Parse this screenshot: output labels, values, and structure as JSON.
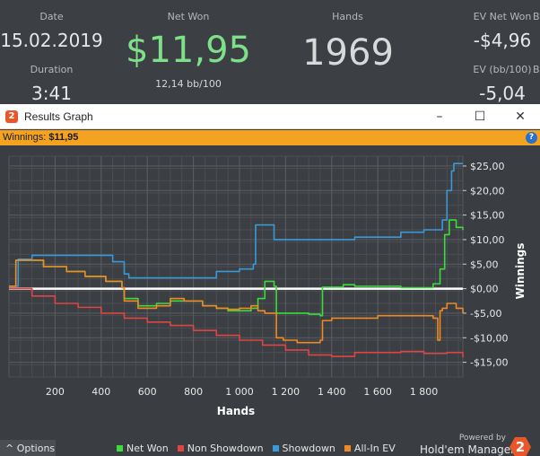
{
  "stats": {
    "date_label": "Date",
    "date_value": "15.02.2019",
    "duration_label": "Duration",
    "duration_value": "3:41",
    "net_won_label": "Net Won",
    "net_won_value": "$11,95",
    "net_won_bb": "12,14 bb/100",
    "hands_label": "Hands",
    "hands_value": "1969",
    "ev_net_won_label": "EV Net Won",
    "ev_net_won_value": "-$4,96",
    "ev_bb_label": "EV (bb/100)",
    "ev_bb_value": "-5,04",
    "cut_label_1": "B",
    "cut_label_2": "B",
    "net_won_color": "#7fe08a"
  },
  "window": {
    "title": "Results Graph",
    "minimize_icon": "minimize-icon",
    "maximize_icon": "maximize-icon",
    "close_icon": "close-icon"
  },
  "infobar": {
    "label": "Winnings:",
    "value": "$11,95",
    "help": "?"
  },
  "bottom": {
    "options_label": "Options",
    "options_icon": "^",
    "powered_by": "Powered by",
    "brand": "Hold'em Manager",
    "brand_logo": "2"
  },
  "chart_data": {
    "type": "line",
    "xlabel": "Hands",
    "ylabel": "Winnings",
    "xlim": [
      0,
      1969
    ],
    "ylim": [
      -18,
      27
    ],
    "x_ticks": [
      200,
      400,
      600,
      800,
      1000,
      1200,
      1400,
      1600,
      1800
    ],
    "x_tick_labels": [
      "200",
      "400",
      "600",
      "800",
      "1 000",
      "1 200",
      "1 400",
      "1 600",
      "1 800"
    ],
    "y_ticks": [
      25,
      20,
      15,
      10,
      5,
      0,
      -5,
      -10,
      -15
    ],
    "y_tick_labels": [
      "$25,00",
      "$20,00",
      "$15,00",
      "$10,00",
      "$5,00",
      "$0,00",
      "-$5,00",
      "-$10,00",
      "-$15,00"
    ],
    "grid": true,
    "legend_position": "bottom",
    "series": [
      {
        "name": "Net Won",
        "color": "#3ddc3d",
        "x": [
          0,
          30,
          60,
          150,
          250,
          330,
          420,
          490,
          500,
          560,
          640,
          700,
          760,
          840,
          900,
          950,
          1000,
          1050,
          1080,
          1110,
          1150,
          1160,
          1190,
          1250,
          1300,
          1350,
          1360,
          1400,
          1450,
          1500,
          1550,
          1600,
          1700,
          1780,
          1840,
          1870,
          1890,
          1910,
          1940,
          1969
        ],
        "y": [
          0.5,
          5.8,
          5.8,
          4.5,
          3.5,
          2.5,
          1.5,
          0.2,
          -2.0,
          -3.5,
          -3.0,
          -2.5,
          -2.5,
          -3.5,
          -4.0,
          -4.5,
          -4.5,
          -4.0,
          -2.0,
          1.5,
          0.5,
          -5.0,
          -5.0,
          -5.0,
          -5.2,
          -5.5,
          0.3,
          0.3,
          0.8,
          0.5,
          0.5,
          0.5,
          0.2,
          0.2,
          1.0,
          4.0,
          11.0,
          14.0,
          12.5,
          11.95
        ]
      },
      {
        "name": "Non Showdown",
        "color": "#e04444",
        "x": [
          0,
          100,
          200,
          300,
          400,
          500,
          600,
          700,
          800,
          900,
          1000,
          1100,
          1200,
          1300,
          1400,
          1500,
          1600,
          1700,
          1800,
          1900,
          1969
        ],
        "y": [
          0,
          -1.5,
          -3.0,
          -3.8,
          -5.0,
          -6.0,
          -6.8,
          -7.5,
          -8.5,
          -9.5,
          -10.5,
          -11.5,
          -12.5,
          -13.5,
          -13.8,
          -13.0,
          -13.0,
          -12.8,
          -13.2,
          -13.0,
          -14.0
        ]
      },
      {
        "name": "Showdown",
        "color": "#3a9ad9",
        "x": [
          0,
          40,
          100,
          200,
          300,
          440,
          450,
          500,
          520,
          700,
          900,
          1000,
          1060,
          1070,
          1100,
          1150,
          1200,
          1400,
          1500,
          1600,
          1700,
          1750,
          1800,
          1850,
          1880,
          1900,
          1920,
          1930,
          1969
        ],
        "y": [
          0.5,
          6.0,
          6.8,
          6.8,
          6.8,
          6.8,
          5.5,
          3.0,
          2.2,
          2.2,
          3.5,
          4.0,
          5.0,
          13.0,
          13.0,
          10.0,
          10.0,
          10.0,
          10.5,
          10.5,
          11.5,
          11.5,
          12.0,
          12.0,
          14.0,
          20.0,
          24.0,
          25.5,
          25.5
        ]
      },
      {
        "name": "All-In EV",
        "color": "#f08a24",
        "x": [
          0,
          30,
          60,
          150,
          250,
          330,
          420,
          490,
          500,
          560,
          640,
          700,
          760,
          840,
          900,
          950,
          1000,
          1050,
          1080,
          1110,
          1160,
          1190,
          1250,
          1300,
          1350,
          1360,
          1400,
          1500,
          1600,
          1700,
          1780,
          1840,
          1860,
          1870,
          1880,
          1900,
          1940,
          1969
        ],
        "y": [
          0.5,
          5.8,
          5.8,
          4.5,
          3.5,
          2.5,
          1.5,
          0.2,
          -2.5,
          -4.0,
          -3.5,
          -2.0,
          -2.5,
          -3.5,
          -4.0,
          -4.2,
          -4.0,
          -3.5,
          -4.5,
          -5.0,
          -10.0,
          -10.5,
          -11.0,
          -11.0,
          -10.5,
          -6.5,
          -6.0,
          -6.0,
          -5.5,
          -5.5,
          -5.5,
          -6.0,
          -10.5,
          -4.5,
          -4.0,
          -3.0,
          -4.0,
          -4.96
        ]
      }
    ]
  }
}
